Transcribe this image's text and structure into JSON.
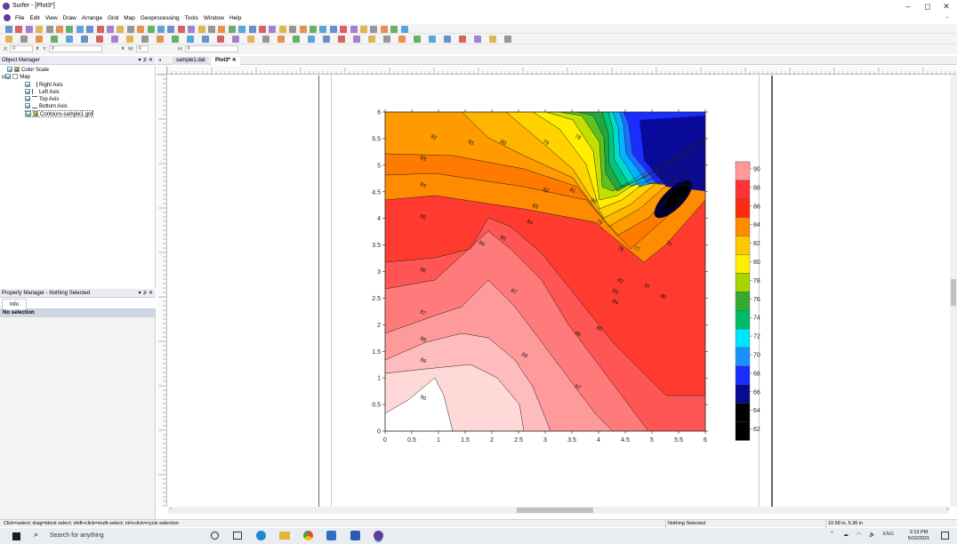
{
  "window": {
    "title": "Surfer - [Plot3*]",
    "controls": [
      "–",
      "◻",
      "✕"
    ],
    "doc_minimize": "- ",
    "doc_restore": "◻"
  },
  "menu": [
    "File",
    "Edit",
    "View",
    "Draw",
    "Arrange",
    "Grid",
    "Map",
    "Geoprocessing",
    "Tools",
    "Window",
    "Help"
  ],
  "coords": {
    "x_label": "X:",
    "x_value": "0",
    "y_label": "Y:",
    "y_value": "0",
    "w_label": "W:",
    "w_value": "0",
    "h_label": "H:",
    "h_value": "0"
  },
  "object_manager": {
    "title": "Object Manager",
    "controls": "▾ ⊅ ✕",
    "items": [
      {
        "label": "Color Scale",
        "indent": 1
      },
      {
        "label": "Map",
        "indent": 0
      },
      {
        "label": "Right Axis",
        "indent": 2
      },
      {
        "label": "Left Axis",
        "indent": 2
      },
      {
        "label": "Top Axis",
        "indent": 2
      },
      {
        "label": "Bottom Axis",
        "indent": 2
      },
      {
        "label": "Contours-sample1.grd",
        "indent": 2
      }
    ]
  },
  "property_manager": {
    "title": "Property Manager - Nothing Selected",
    "controls": "▾ ⊅ ✕",
    "tab": "Info",
    "status": "No selection"
  },
  "doc_tabs": [
    "sample1.dat",
    "Plot3*"
  ],
  "doc_tab_close": "✕",
  "status": {
    "hint": "Click=select; drag=block select; shift+click=multi-select; ctrl+click=cycle selection",
    "selection": "Nothing Selected",
    "cursor": "10.58 in, 5.36 in"
  },
  "taskbar": {
    "search_placeholder": "Search for anything",
    "time": "2:13 PM",
    "date": "5/10/2021",
    "lang": "ENG"
  },
  "chart_data": {
    "type": "contour",
    "x_ticks": [
      "0",
      "0.5",
      "1",
      "1.5",
      "2",
      "2.5",
      "3",
      "3.5",
      "4",
      "4.5",
      "5",
      "5.5",
      "6"
    ],
    "y_ticks": [
      "0",
      "0.5",
      "1",
      "1.5",
      "2",
      "2.5",
      "3",
      "3.5",
      "4",
      "4.5",
      "5",
      "5.5",
      "6"
    ],
    "xlim": [
      0,
      6
    ],
    "ylim": [
      0,
      6
    ],
    "colorscale": {
      "labels": [
        "90",
        "88",
        "86",
        "84",
        "82",
        "80",
        "78",
        "76",
        "74",
        "72",
        "70",
        "68",
        "66",
        "64",
        "62"
      ],
      "colors": [
        "#ffffff",
        "#ff9999",
        "#ff3333",
        "#ff2a10",
        "#ff8c00",
        "#ffc800",
        "#ffee00",
        "#a8d400",
        "#33aa33",
        "#00bb66",
        "#00e5ff",
        "#1a90ff",
        "#1a2dff",
        "#0a0a90",
        "#000000"
      ]
    },
    "contour_labels": [
      {
        "text": "82",
        "x": 0.9,
        "y": 5.5
      },
      {
        "text": "81",
        "x": 1.6,
        "y": 5.4
      },
      {
        "text": "80",
        "x": 2.2,
        "y": 5.4
      },
      {
        "text": "79",
        "x": 3.0,
        "y": 5.4
      },
      {
        "text": "78",
        "x": 3.6,
        "y": 5.5
      },
      {
        "text": "83",
        "x": 0.7,
        "y": 5.1
      },
      {
        "text": "84",
        "x": 0.7,
        "y": 4.6
      },
      {
        "text": "85",
        "x": 0.7,
        "y": 4.0
      },
      {
        "text": "86",
        "x": 0.7,
        "y": 3.0
      },
      {
        "text": "87",
        "x": 0.7,
        "y": 2.2
      },
      {
        "text": "88",
        "x": 0.7,
        "y": 1.7
      },
      {
        "text": "89",
        "x": 0.7,
        "y": 1.3
      },
      {
        "text": "90",
        "x": 0.7,
        "y": 0.6
      },
      {
        "text": "82",
        "x": 3.0,
        "y": 4.5
      },
      {
        "text": "81",
        "x": 3.5,
        "y": 4.5
      },
      {
        "text": "80",
        "x": 3.9,
        "y": 4.3
      },
      {
        "text": "83",
        "x": 2.8,
        "y": 4.2
      },
      {
        "text": "84",
        "x": 2.7,
        "y": 3.9
      },
      {
        "text": "85",
        "x": 2.2,
        "y": 3.6
      },
      {
        "text": "86",
        "x": 1.8,
        "y": 3.5
      },
      {
        "text": "79",
        "x": 4.0,
        "y": 3.9
      },
      {
        "text": "82",
        "x": 4.4,
        "y": 2.8
      },
      {
        "text": "81",
        "x": 4.9,
        "y": 2.7
      },
      {
        "text": "80",
        "x": 5.2,
        "y": 2.5
      },
      {
        "text": "83",
        "x": 4.3,
        "y": 2.6
      },
      {
        "text": "84",
        "x": 4.3,
        "y": 2.4
      },
      {
        "text": "87",
        "x": 2.4,
        "y": 2.6
      },
      {
        "text": "86",
        "x": 3.6,
        "y": 1.8
      },
      {
        "text": "85",
        "x": 4.0,
        "y": 1.9
      },
      {
        "text": "89",
        "x": 2.6,
        "y": 1.4
      },
      {
        "text": "87",
        "x": 3.6,
        "y": 0.8
      },
      {
        "text": "78",
        "x": 4.4,
        "y": 3.4
      },
      {
        "text": "77",
        "x": 4.7,
        "y": 3.4
      },
      {
        "text": "70",
        "x": 5.3,
        "y": 3.5
      }
    ]
  }
}
